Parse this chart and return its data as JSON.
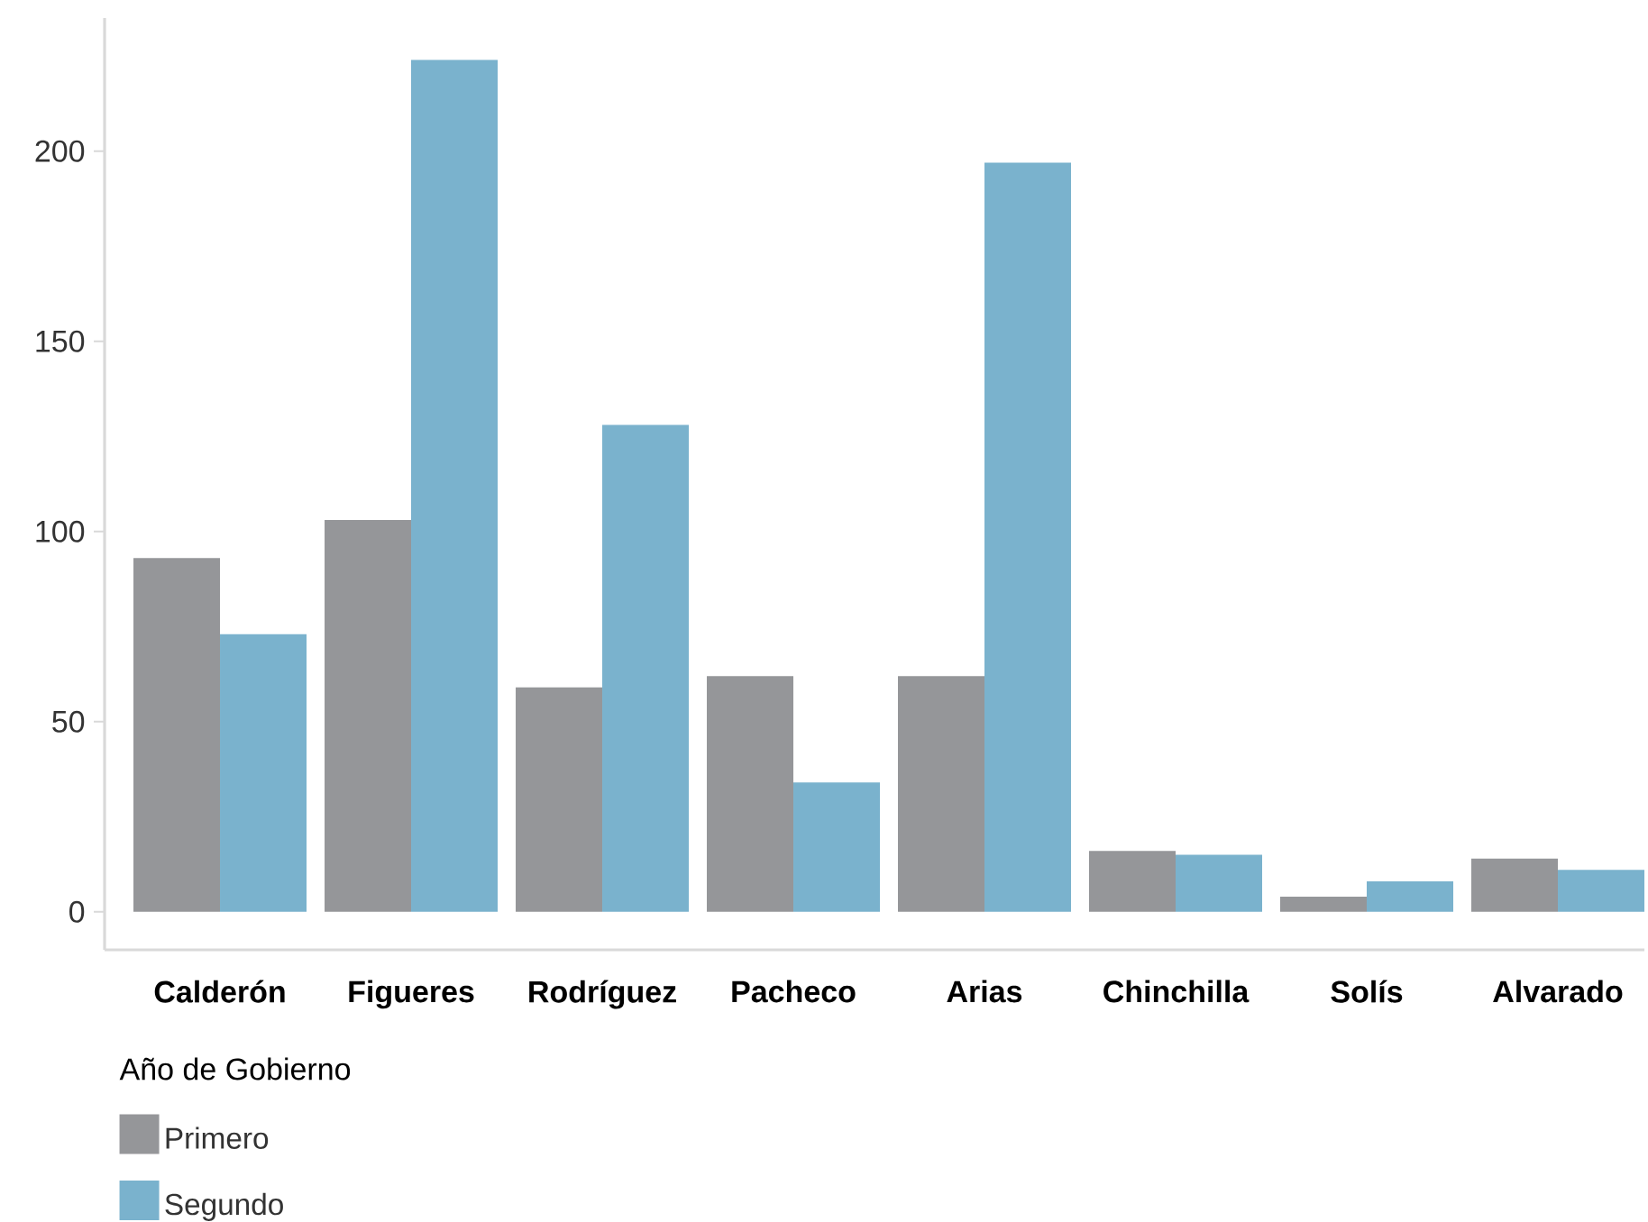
{
  "chart_data": {
    "type": "bar",
    "categories": [
      "Calderón",
      "Figueres",
      "Rodríguez",
      "Pacheco",
      "Arias",
      "Chinchilla",
      "Solís",
      "Alvarado"
    ],
    "legend_title": "Año de Gobierno",
    "series": [
      {
        "name": "Primero",
        "color": "#959699",
        "values": [
          93,
          103,
          59,
          62,
          62,
          16,
          4,
          14
        ]
      },
      {
        "name": "Segundo",
        "color": "#7ab2cd",
        "values": [
          73,
          224,
          128,
          34,
          197,
          15,
          8,
          11
        ]
      }
    ],
    "ylim": [
      -10,
      235
    ],
    "yticks": [
      0,
      50,
      100,
      150,
      200
    ],
    "grid": false,
    "legend": "bottom left"
  }
}
